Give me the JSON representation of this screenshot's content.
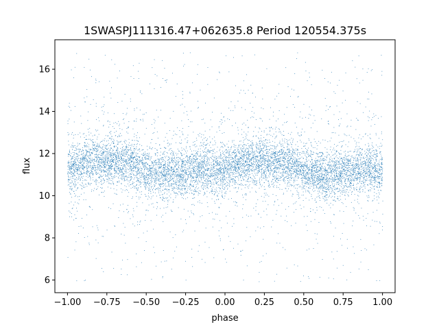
{
  "chart_data": {
    "type": "scatter",
    "title": "1SWASPJ111316.47+062635.8 Period 120554.375s",
    "xlabel": "phase",
    "ylabel": "flux",
    "xlim": [
      -1.08,
      1.08
    ],
    "ylim": [
      5.4,
      17.4
    ],
    "x_ticks": [
      -1.0,
      -0.75,
      -0.5,
      -0.25,
      0.0,
      0.25,
      0.5,
      0.75,
      1.0
    ],
    "x_tick_labels": [
      "−1.00",
      "−0.75",
      "−0.50",
      "−0.25",
      "0.00",
      "0.25",
      "0.50",
      "0.75",
      "1.00"
    ],
    "y_ticks": [
      6,
      8,
      10,
      12,
      14,
      16
    ],
    "y_tick_labels": [
      "6",
      "8",
      "10",
      "12",
      "14",
      "16"
    ],
    "grid": false,
    "point_color": "#1f77b4",
    "series": [
      {
        "points_summary": "phase-folded light curve, duplicated over two cycles; dense band around flux 11-12 with sparse outliers from 6 to 16.8",
        "baseline_profile": {
          "phase": [
            -1.0,
            -0.875,
            -0.75,
            -0.625,
            -0.5,
            -0.375,
            -0.25,
            -0.125,
            0.0,
            0.125,
            0.25,
            0.375,
            0.5,
            0.625,
            0.75,
            0.875,
            1.0
          ],
          "flux": [
            11.3,
            11.6,
            11.7,
            11.6,
            11.2,
            11.0,
            11.1,
            11.3,
            11.3,
            11.6,
            11.7,
            11.6,
            11.2,
            11.0,
            11.1,
            11.3,
            11.3
          ]
        },
        "flux_range": [
          5.9,
          16.8
        ]
      }
    ]
  }
}
